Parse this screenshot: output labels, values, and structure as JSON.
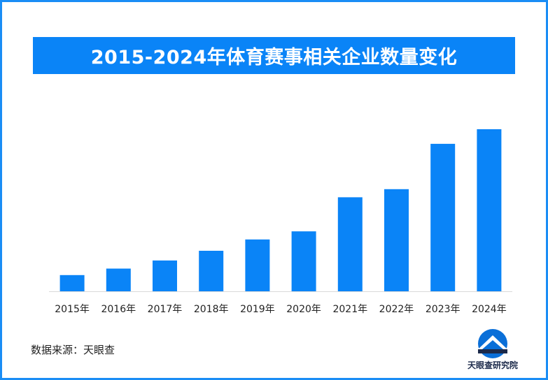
{
  "title": "2015-2024年体育赛事相关企业数量变化",
  "source": "数据来源：天眼查",
  "logo_text": "天眼查研究院",
  "colors": {
    "bar": "#0a84f7",
    "title_bg": "#0a84f7",
    "frame": "#1a8df5"
  },
  "chart_data": {
    "type": "bar",
    "title": "2015-2024年体育赛事相关企业数量变化",
    "categories": [
      "2015年",
      "2016年",
      "2017年",
      "2018年",
      "2019年",
      "2020年",
      "2021年",
      "2022年",
      "2023年",
      "2024年"
    ],
    "values": [
      10,
      14,
      19,
      25,
      32,
      37,
      58,
      63,
      91,
      100
    ],
    "xlabel": "",
    "ylabel": "",
    "ylim": [
      0,
      100
    ],
    "grid": false,
    "axis_ticks_visible": false
  }
}
